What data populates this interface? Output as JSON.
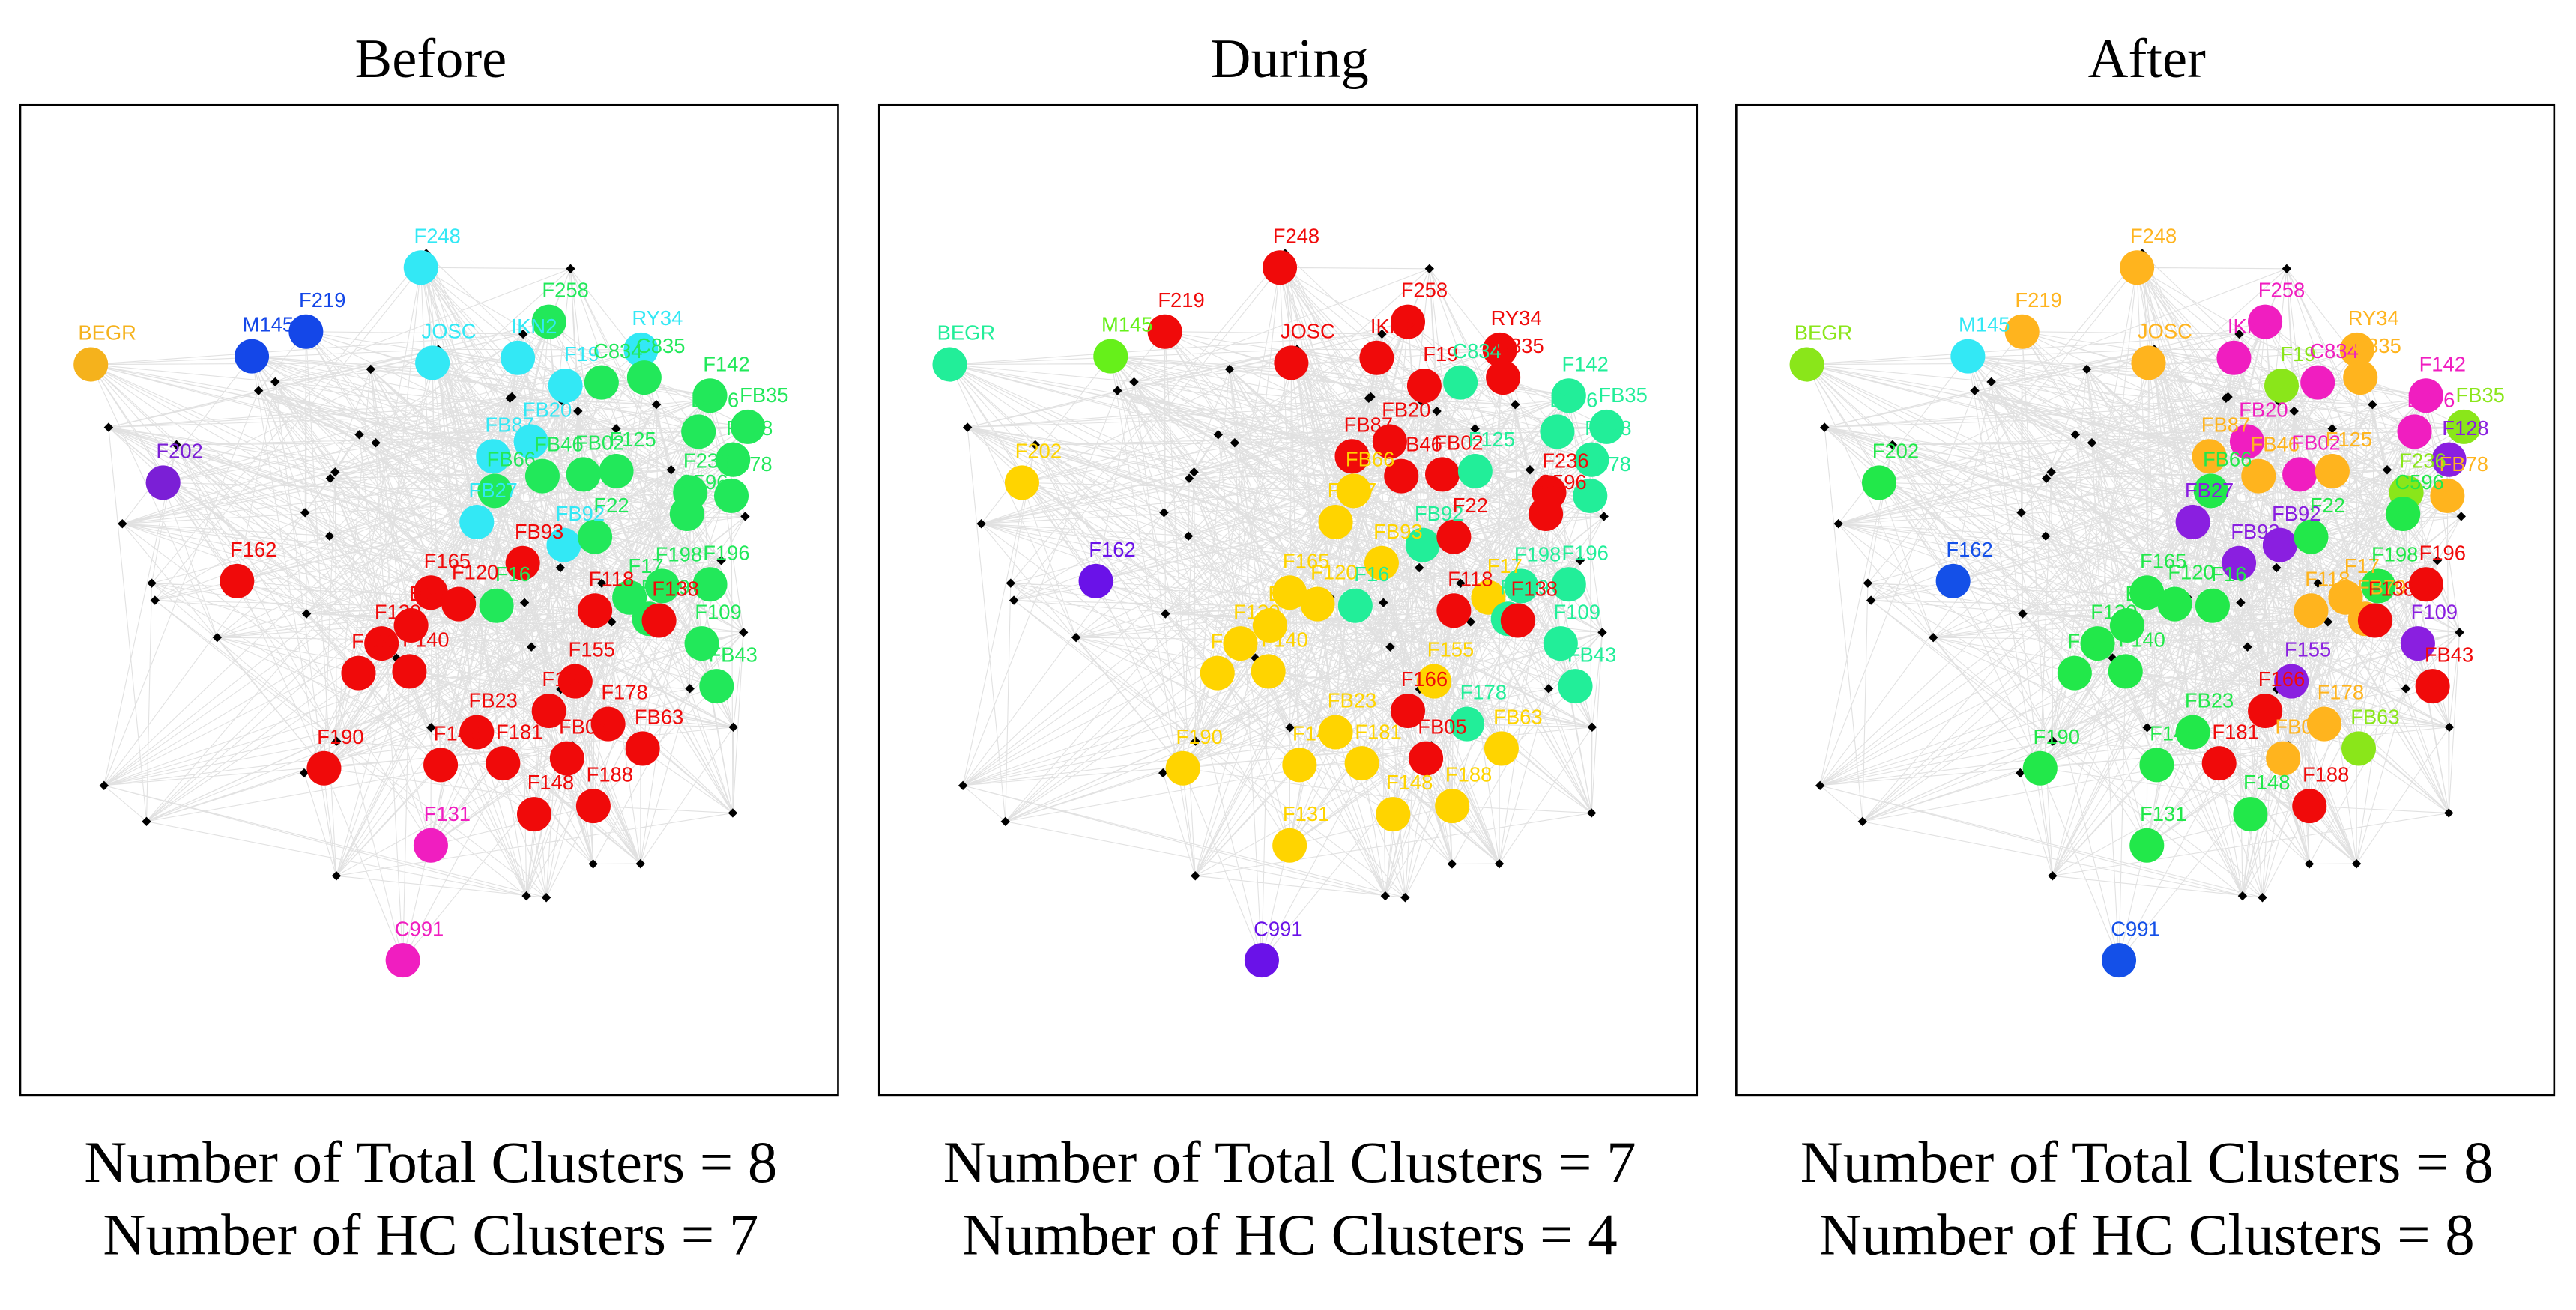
{
  "figure": {
    "node_labels": [
      "BEGR",
      "M145",
      "F219",
      "F248",
      "JOSC",
      "F258",
      "IKN2",
      "RY34",
      "F19",
      "C834",
      "C835",
      "F142",
      "B276",
      "FB35",
      "F128",
      "FB20",
      "FB87",
      "FB46",
      "FB02",
      "F125",
      "FB78",
      "F236",
      "FB66",
      "FB27",
      "FB92",
      "C596",
      "F22",
      "F196",
      "FB93",
      "F16",
      "F17",
      "F198",
      "FB79",
      "F109",
      "FB43",
      "F138",
      "F118",
      "F165",
      "F120",
      "F162",
      "F202",
      "B65",
      "F139",
      "F130",
      "F140",
      "F166",
      "F155",
      "F178",
      "FB63",
      "F190",
      "F188",
      "F148",
      "F181",
      "FB23",
      "F131",
      "C991",
      "F146",
      "FB05"
    ],
    "panels": [
      {
        "title": "Before",
        "caption_total": "Number of Total Clusters = 8",
        "caption_hc": "Number of HC Clusters = 7",
        "node_colors": [
          "#f5b21c",
          "#1447e8",
          "#1447e8",
          "#33e8f5",
          "#33e8f5",
          "#22e85a",
          "#33e8f5",
          "#33e8f5",
          "#33e8f5",
          "#22e85a",
          "#22e85a",
          "#22e85a",
          "#22e85a",
          "#22e85a",
          "#22e85a",
          "#33e8f5",
          "#33e8f5",
          "#22e85a",
          "#22e85a",
          "#22e85a",
          "#22e85a",
          "#22e85a",
          "#22e85a",
          "#33e8f5",
          "#33e8f5",
          "#22e85a",
          "#22e85a",
          "#22e85a",
          "#f00a0a",
          "#22e85a",
          "#22e85a",
          "#22e85a",
          "#22e85a",
          "#22e85a",
          "#22e85a",
          "#f00a0a",
          "#f00a0a",
          "#f00a0a",
          "#f00a0a",
          "#f00a0a",
          "#7b1fd6",
          "#f00a0a",
          "#f00a0a",
          "#f00a0a",
          "#f00a0a",
          "#f00a0a",
          "#f00a0a",
          "#f00a0a",
          "#f00a0a",
          "#f00a0a",
          "#f00a0a",
          "#f00a0a",
          "#f00a0a",
          "#f00a0a",
          "#f01ec0",
          "#f01ec0",
          "#f00a0a",
          "#f00a0a"
        ]
      },
      {
        "title": "During",
        "caption_total": "Number of Total Clusters = 7",
        "caption_hc": "Number of HC Clusters = 4",
        "node_colors": [
          "#22ee99",
          "#66f01a",
          "#f00a0a",
          "#f00a0a",
          "#f00a0a",
          "#f00a0a",
          "#f00a0a",
          "#f00a0a",
          "#f00a0a",
          "#22ee99",
          "#f00a0a",
          "#22ee99",
          "#22ee99",
          "#22ee99",
          "#22ee99",
          "#f00a0a",
          "#f00a0a",
          "#f00a0a",
          "#f00a0a",
          "#22ee99",
          "#22ee99",
          "#f00a0a",
          "#ffd400",
          "#ffd400",
          "#22ee99",
          "#f00a0a",
          "#f00a0a",
          "#22ee99",
          "#ffd400",
          "#22ee99",
          "#ffd400",
          "#22ee99",
          "#22ee99",
          "#22ee99",
          "#22ee99",
          "#f00a0a",
          "#f00a0a",
          "#ffd400",
          "#ffd400",
          "#6a12e8",
          "#ffd400",
          "#ffd400",
          "#ffd400",
          "#ffd400",
          "#ffd400",
          "#f00a0a",
          "#ffd400",
          "#22ee99",
          "#ffd400",
          "#ffd400",
          "#ffd400",
          "#ffd400",
          "#ffd400",
          "#ffd400",
          "#ffd400",
          "#6a12e8",
          "#ffd400",
          "#f00a0a"
        ]
      },
      {
        "title": "After",
        "caption_total": "Number of Total Clusters = 8",
        "caption_hc": "Number of HC Clusters = 8",
        "node_colors": [
          "#8ae61a",
          "#33e8f5",
          "#ffb41e",
          "#ffb41e",
          "#ffb41e",
          "#f01ec0",
          "#f01ec0",
          "#ffb41e",
          "#8ae61a",
          "#f01ec0",
          "#ffb41e",
          "#f01ec0",
          "#f01ec0",
          "#8ae61a",
          "#8a1fe0",
          "#f01ec0",
          "#ffb41e",
          "#ffb41e",
          "#f01ec0",
          "#ffb41e",
          "#ffb41e",
          "#8ae61a",
          "#22e84a",
          "#8a1fe0",
          "#8a1fe0",
          "#22e84a",
          "#22e84a",
          "#f00a0a",
          "#8a1fe0",
          "#22e84a",
          "#ffb41e",
          "#22e84a",
          "#ffb41e",
          "#8a1fe0",
          "#f00a0a",
          "#f00a0a",
          "#ffb41e",
          "#22e84a",
          "#22e84a",
          "#1450e8",
          "#22e84a",
          "#22e84a",
          "#22e84a",
          "#22e84a",
          "#22e84a",
          "#f00a0a",
          "#8a1fe0",
          "#ffb41e",
          "#8ae61a",
          "#22e84a",
          "#f00a0a",
          "#22e84a",
          "#f00a0a",
          "#22e84a",
          "#22e84a",
          "#1450e8",
          "#22e84a",
          "#ffb41e"
        ]
      }
    ]
  }
}
